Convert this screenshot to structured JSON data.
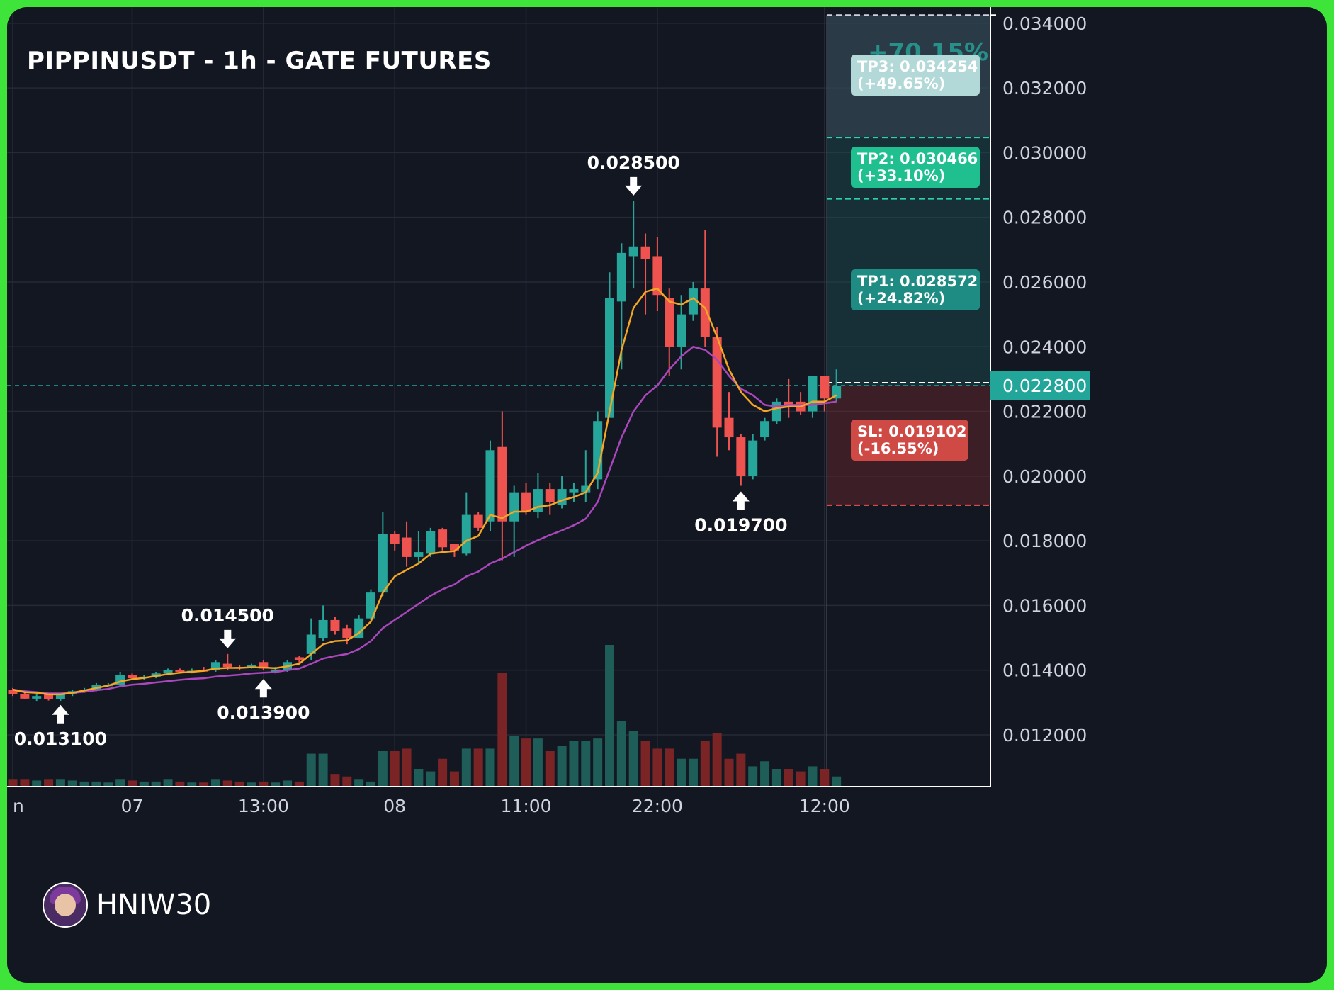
{
  "header": {
    "title": "PIPPINUSDT - 1h - GATE FUTURES"
  },
  "watermark": {
    "handle": "HNIW30",
    "avatar_icon": "avatar-icon"
  },
  "colors": {
    "background": "#131722",
    "frame": "#3ee43a",
    "up": "#26a69a",
    "down": "#ef5350",
    "ema_fast": "#f5a623",
    "ema_slow": "#ab47bc",
    "tp3_box": "#b2d8d8",
    "tp2_box": "#1fbf90",
    "tp1_box": "#1e8c82",
    "sl_box": "#d04a45",
    "current_price_tag": "#22a699"
  },
  "chart_data": {
    "type": "candlestick",
    "symbol": "PIPPINUSDT",
    "timeframe": "1h",
    "exchange": "GATE FUTURES",
    "ylim": [
      0.0104,
      0.0345
    ],
    "y_ticks": [
      "0.034000",
      "0.032000",
      "0.030000",
      "0.028000",
      "0.026000",
      "0.024000",
      "0.022000",
      "0.020000",
      "0.018000",
      "0.016000",
      "0.014000",
      "0.012000"
    ],
    "x_ticks": [
      {
        "label": "n",
        "index": 0
      },
      {
        "label": "07",
        "index": 10
      },
      {
        "label": "13:00",
        "index": 21
      },
      {
        "label": "08",
        "index": 32
      },
      {
        "label": "11:00",
        "index": 43
      },
      {
        "label": "22:00",
        "index": 54
      },
      {
        "label": "12:00",
        "index": 68
      }
    ],
    "candles": [
      {
        "o": 0.0134,
        "h": 0.01345,
        "l": 0.0132,
        "c": 0.01325,
        "v": 15
      },
      {
        "o": 0.01325,
        "h": 0.0133,
        "l": 0.0131,
        "c": 0.01312,
        "v": 15
      },
      {
        "o": 0.01312,
        "h": 0.01325,
        "l": 0.01305,
        "c": 0.0132,
        "v": 12
      },
      {
        "o": 0.01325,
        "h": 0.01328,
        "l": 0.01306,
        "c": 0.0131,
        "v": 15
      },
      {
        "o": 0.0131,
        "h": 0.0133,
        "l": 0.01305,
        "c": 0.01325,
        "v": 15
      },
      {
        "o": 0.01325,
        "h": 0.0134,
        "l": 0.0132,
        "c": 0.01335,
        "v": 12
      },
      {
        "o": 0.01335,
        "h": 0.01345,
        "l": 0.0133,
        "c": 0.0134,
        "v": 10
      },
      {
        "o": 0.0134,
        "h": 0.0136,
        "l": 0.01335,
        "c": 0.01355,
        "v": 10
      },
      {
        "o": 0.01355,
        "h": 0.0136,
        "l": 0.0135,
        "c": 0.01355,
        "v": 8
      },
      {
        "o": 0.01355,
        "h": 0.01395,
        "l": 0.0135,
        "c": 0.01385,
        "v": 15
      },
      {
        "o": 0.01385,
        "h": 0.0139,
        "l": 0.0137,
        "c": 0.01375,
        "v": 12
      },
      {
        "o": 0.01375,
        "h": 0.01385,
        "l": 0.0137,
        "c": 0.0138,
        "v": 10
      },
      {
        "o": 0.0138,
        "h": 0.01395,
        "l": 0.01375,
        "c": 0.0139,
        "v": 10
      },
      {
        "o": 0.0139,
        "h": 0.01405,
        "l": 0.01385,
        "c": 0.014,
        "v": 15
      },
      {
        "o": 0.014,
        "h": 0.01405,
        "l": 0.0139,
        "c": 0.01395,
        "v": 10
      },
      {
        "o": 0.01395,
        "h": 0.01405,
        "l": 0.0139,
        "c": 0.01398,
        "v": 8
      },
      {
        "o": 0.014,
        "h": 0.0141,
        "l": 0.01395,
        "c": 0.01398,
        "v": 8
      },
      {
        "o": 0.014,
        "h": 0.0143,
        "l": 0.01395,
        "c": 0.01425,
        "v": 15
      },
      {
        "o": 0.0142,
        "h": 0.0145,
        "l": 0.014,
        "c": 0.0141,
        "v": 12
      },
      {
        "o": 0.0141,
        "h": 0.01415,
        "l": 0.014,
        "c": 0.01405,
        "v": 10
      },
      {
        "o": 0.0141,
        "h": 0.0142,
        "l": 0.01405,
        "c": 0.01415,
        "v": 8
      },
      {
        "o": 0.01425,
        "h": 0.0143,
        "l": 0.014,
        "c": 0.01405,
        "v": 10
      },
      {
        "o": 0.01395,
        "h": 0.0141,
        "l": 0.0139,
        "c": 0.01402,
        "v": 8
      },
      {
        "o": 0.014,
        "h": 0.0143,
        "l": 0.01395,
        "c": 0.01425,
        "v": 12
      },
      {
        "o": 0.0144,
        "h": 0.01445,
        "l": 0.0142,
        "c": 0.0143,
        "v": 10
      },
      {
        "o": 0.0145,
        "h": 0.0156,
        "l": 0.0143,
        "c": 0.0151,
        "v": 65
      },
      {
        "o": 0.015,
        "h": 0.016,
        "l": 0.0149,
        "c": 0.01555,
        "v": 65
      },
      {
        "o": 0.01555,
        "h": 0.01565,
        "l": 0.0151,
        "c": 0.0152,
        "v": 25
      },
      {
        "o": 0.0153,
        "h": 0.0154,
        "l": 0.0148,
        "c": 0.015,
        "v": 20
      },
      {
        "o": 0.015,
        "h": 0.0157,
        "l": 0.015,
        "c": 0.0156,
        "v": 15
      },
      {
        "o": 0.0156,
        "h": 0.0165,
        "l": 0.01555,
        "c": 0.0164,
        "v": 10
      },
      {
        "o": 0.0164,
        "h": 0.0189,
        "l": 0.0163,
        "c": 0.0182,
        "v": 70
      },
      {
        "o": 0.0182,
        "h": 0.0183,
        "l": 0.0177,
        "c": 0.0179,
        "v": 70
      },
      {
        "o": 0.0181,
        "h": 0.0186,
        "l": 0.0172,
        "c": 0.0175,
        "v": 75
      },
      {
        "o": 0.0175,
        "h": 0.0183,
        "l": 0.0173,
        "c": 0.01765,
        "v": 35
      },
      {
        "o": 0.0176,
        "h": 0.0184,
        "l": 0.0175,
        "c": 0.0183,
        "v": 30
      },
      {
        "o": 0.01835,
        "h": 0.0184,
        "l": 0.0177,
        "c": 0.0178,
        "v": 55
      },
      {
        "o": 0.0179,
        "h": 0.0179,
        "l": 0.0175,
        "c": 0.0177,
        "v": 30
      },
      {
        "o": 0.0176,
        "h": 0.0195,
        "l": 0.01755,
        "c": 0.0188,
        "v": 75
      },
      {
        "o": 0.0188,
        "h": 0.0189,
        "l": 0.0183,
        "c": 0.0184,
        "v": 75
      },
      {
        "o": 0.0186,
        "h": 0.0211,
        "l": 0.0183,
        "c": 0.0208,
        "v": 75
      },
      {
        "o": 0.0209,
        "h": 0.022,
        "l": 0.0174,
        "c": 0.0186,
        "v": 225
      },
      {
        "o": 0.0186,
        "h": 0.0197,
        "l": 0.0175,
        "c": 0.0195,
        "v": 100
      },
      {
        "o": 0.0195,
        "h": 0.0198,
        "l": 0.0188,
        "c": 0.0189,
        "v": 95
      },
      {
        "o": 0.0189,
        "h": 0.0201,
        "l": 0.0187,
        "c": 0.0196,
        "v": 95
      },
      {
        "o": 0.0196,
        "h": 0.0198,
        "l": 0.0188,
        "c": 0.0192,
        "v": 70
      },
      {
        "o": 0.0191,
        "h": 0.02,
        "l": 0.019,
        "c": 0.0196,
        "v": 80
      },
      {
        "o": 0.0195,
        "h": 0.0198,
        "l": 0.0192,
        "c": 0.0196,
        "v": 90
      },
      {
        "o": 0.0195,
        "h": 0.0208,
        "l": 0.0192,
        "c": 0.0197,
        "v": 90
      },
      {
        "o": 0.0199,
        "h": 0.022,
        "l": 0.0196,
        "c": 0.0217,
        "v": 95
      },
      {
        "o": 0.0218,
        "h": 0.0263,
        "l": 0.0218,
        "c": 0.0255,
        "v": 280
      },
      {
        "o": 0.0254,
        "h": 0.0272,
        "l": 0.0233,
        "c": 0.0269,
        "v": 130
      },
      {
        "o": 0.0268,
        "h": 0.0285,
        "l": 0.0258,
        "c": 0.0271,
        "v": 110
      },
      {
        "o": 0.0271,
        "h": 0.0275,
        "l": 0.025,
        "c": 0.0267,
        "v": 90
      },
      {
        "o": 0.0268,
        "h": 0.0274,
        "l": 0.0251,
        "c": 0.0256,
        "v": 75
      },
      {
        "o": 0.0255,
        "h": 0.0258,
        "l": 0.0231,
        "c": 0.024,
        "v": 75
      },
      {
        "o": 0.024,
        "h": 0.0256,
        "l": 0.0233,
        "c": 0.025,
        "v": 55
      },
      {
        "o": 0.025,
        "h": 0.026,
        "l": 0.0248,
        "c": 0.0258,
        "v": 55
      },
      {
        "o": 0.0258,
        "h": 0.0276,
        "l": 0.024,
        "c": 0.0243,
        "v": 90
      },
      {
        "o": 0.0243,
        "h": 0.0246,
        "l": 0.0206,
        "c": 0.0215,
        "v": 105
      },
      {
        "o": 0.0218,
        "h": 0.0226,
        "l": 0.0208,
        "c": 0.0212,
        "v": 55
      },
      {
        "o": 0.0212,
        "h": 0.0213,
        "l": 0.0197,
        "c": 0.02,
        "v": 65
      },
      {
        "o": 0.02,
        "h": 0.0213,
        "l": 0.0199,
        "c": 0.0211,
        "v": 40
      },
      {
        "o": 0.0212,
        "h": 0.0218,
        "l": 0.0211,
        "c": 0.0217,
        "v": 50
      },
      {
        "o": 0.0217,
        "h": 0.0224,
        "l": 0.0216,
        "c": 0.0223,
        "v": 35
      },
      {
        "o": 0.0223,
        "h": 0.023,
        "l": 0.0218,
        "c": 0.0222,
        "v": 35
      },
      {
        "o": 0.0223,
        "h": 0.0226,
        "l": 0.0219,
        "c": 0.022,
        "v": 30
      },
      {
        "o": 0.022,
        "h": 0.0231,
        "l": 0.0218,
        "c": 0.0231,
        "v": 40
      },
      {
        "o": 0.0231,
        "h": 0.0231,
        "l": 0.022,
        "c": 0.0224,
        "v": 35
      },
      {
        "o": 0.0224,
        "h": 0.0233,
        "l": 0.0223,
        "c": 0.0228,
        "v": 20
      }
    ],
    "ema_fast": [
      0.0134,
      0.01332,
      0.0133,
      0.01325,
      0.01325,
      0.0133,
      0.01337,
      0.01345,
      0.01352,
      0.01365,
      0.01372,
      0.01376,
      0.01382,
      0.01388,
      0.01392,
      0.01395,
      0.01398,
      0.01405,
      0.01407,
      0.01407,
      0.01409,
      0.01408,
      0.01406,
      0.01412,
      0.0142,
      0.0145,
      0.0148,
      0.0149,
      0.01492,
      0.01515,
      0.0155,
      0.0164,
      0.0169,
      0.0171,
      0.0173,
      0.0176,
      0.01765,
      0.01768,
      0.018,
      0.01815,
      0.0188,
      0.0187,
      0.0189,
      0.0189,
      0.01905,
      0.0191,
      0.01925,
      0.01935,
      0.0195,
      0.0201,
      0.022,
      0.0239,
      0.0252,
      0.0257,
      0.0258,
      0.0254,
      0.0253,
      0.0255,
      0.0252,
      0.0243,
      0.0233,
      0.0226,
      0.0222,
      0.022,
      0.0221,
      0.02215,
      0.02215,
      0.0223,
      0.0223,
      0.0225
    ],
    "ema_slow": [
      0.0134,
      0.01335,
      0.01332,
      0.01328,
      0.01328,
      0.0133,
      0.01333,
      0.01338,
      0.01342,
      0.0135,
      0.01355,
      0.01358,
      0.01362,
      0.01366,
      0.0137,
      0.01373,
      0.01375,
      0.0138,
      0.01383,
      0.01386,
      0.0139,
      0.01392,
      0.01394,
      0.014,
      0.01405,
      0.0142,
      0.01436,
      0.01444,
      0.0145,
      0.01465,
      0.0149,
      0.0153,
      0.01555,
      0.0158,
      0.01605,
      0.0163,
      0.0165,
      0.01665,
      0.0169,
      0.01705,
      0.0173,
      0.01745,
      0.01765,
      0.01785,
      0.01802,
      0.01818,
      0.01832,
      0.01848,
      0.01868,
      0.0192,
      0.0202,
      0.0212,
      0.022,
      0.0225,
      0.0228,
      0.0233,
      0.0237,
      0.024,
      0.0239,
      0.0236,
      0.0231,
      0.0227,
      0.0225,
      0.0222,
      0.02215,
      0.0222,
      0.0222,
      0.0222,
      0.02225,
      0.0223
    ],
    "annotations": [
      {
        "text": "0.013100",
        "index": 4,
        "price": 0.0131,
        "direction": "up"
      },
      {
        "text": "0.014500",
        "index": 18,
        "price": 0.0145,
        "direction": "down"
      },
      {
        "text": "0.013900",
        "index": 21,
        "price": 0.0139,
        "direction": "up"
      },
      {
        "text": "0.028500",
        "index": 52,
        "price": 0.0285,
        "direction": "down"
      },
      {
        "text": "0.019700",
        "index": 61,
        "price": 0.0197,
        "direction": "up"
      }
    ],
    "current_price": {
      "label": "0.022800",
      "value": 0.0228
    },
    "targets": [
      {
        "name": "TP3",
        "line1": "TP3: 0.034254",
        "line2": "(+49.65%)",
        "price": 0.034254
      },
      {
        "name": "TP2",
        "line1": "TP2: 0.030466",
        "line2": "(+33.10%)",
        "price": 0.030466
      },
      {
        "name": "TP1",
        "line1": "TP1: 0.028572",
        "line2": "(+24.82%)",
        "price": 0.028572
      }
    ],
    "stop_loss": {
      "line1": "SL: 0.019102",
      "line2": "(-16.55%)",
      "price": 0.019102
    },
    "max_gain_label": "+70.15%"
  }
}
